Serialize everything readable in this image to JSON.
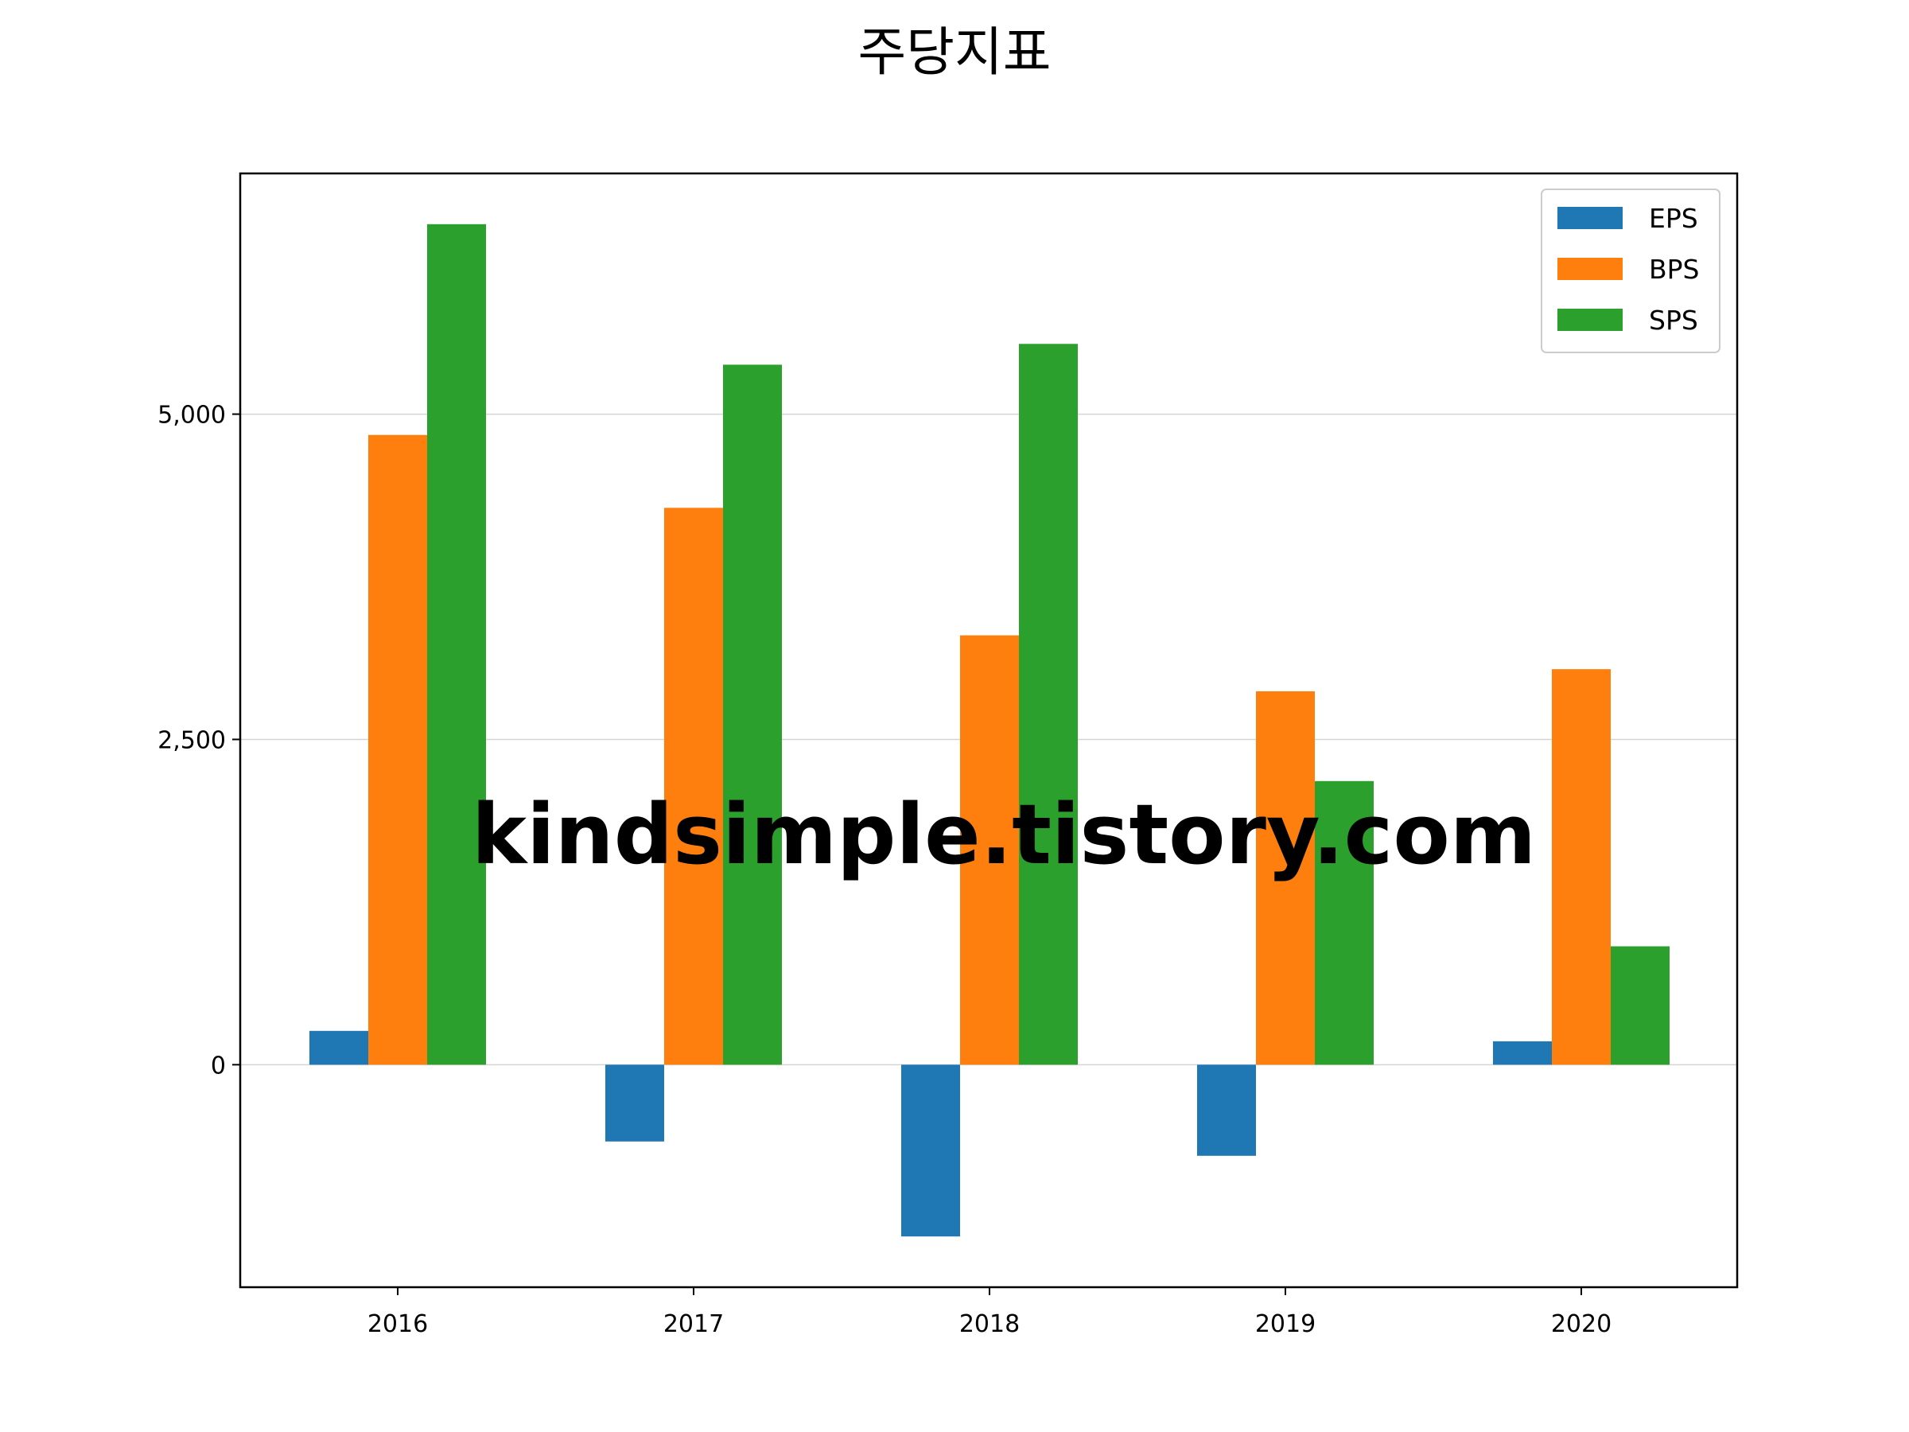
{
  "chart_data": {
    "type": "bar",
    "title": "주당지표",
    "xlabel": "",
    "ylabel": "",
    "categories": [
      "2016",
      "2017",
      "2018",
      "2019",
      "2020"
    ],
    "series": [
      {
        "name": "EPS",
        "color": "#1f77b4",
        "values": [
          260,
          -590,
          -1320,
          -700,
          180
        ]
      },
      {
        "name": "BPS",
        "color": "#ff7f0e",
        "values": [
          4840,
          4280,
          3300,
          2870,
          3040
        ]
      },
      {
        "name": "SPS",
        "color": "#2ca02c",
        "values": [
          6460,
          5380,
          5540,
          2180,
          910
        ]
      }
    ],
    "ylim": [
      -1710,
      6850
    ],
    "yticks": [
      0,
      2500,
      5000
    ],
    "ytick_labels": [
      "0",
      "2,500",
      "5,000"
    ],
    "grid": {
      "y": true,
      "x": false
    },
    "legend_position": "top-right"
  },
  "watermark": "kindsimple.tistory.com"
}
